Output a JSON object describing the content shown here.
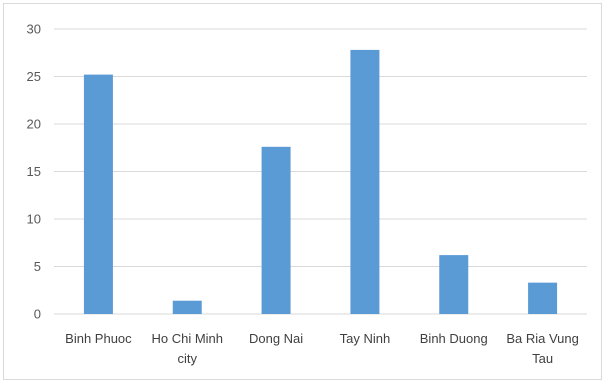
{
  "chart_data": {
    "type": "bar",
    "categories": [
      "Binh Phuoc",
      "Ho Chi Minh city",
      "Dong Nai",
      "Tay Ninh",
      "Binh Duong",
      "Ba Ria Vung Tau"
    ],
    "category_lines": [
      [
        "Binh Phuoc"
      ],
      [
        "Ho Chi Minh",
        "city"
      ],
      [
        "Dong Nai"
      ],
      [
        "Tay Ninh"
      ],
      [
        "Binh Duong"
      ],
      [
        "Ba Ria Vung",
        "Tau"
      ]
    ],
    "values": [
      25.2,
      1.4,
      17.6,
      27.8,
      6.2,
      3.3
    ],
    "ylim": [
      0,
      30
    ],
    "yticks": [
      0,
      5,
      10,
      15,
      20,
      25,
      30
    ],
    "grid": true,
    "bar_color": "#5b9bd5",
    "grid_color": "#d9d9d9"
  }
}
